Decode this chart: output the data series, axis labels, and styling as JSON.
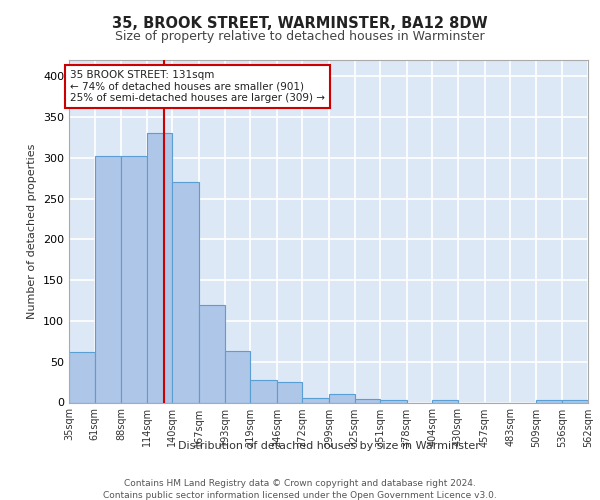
{
  "title1": "35, BROOK STREET, WARMINSTER, BA12 8DW",
  "title2": "Size of property relative to detached houses in Warminster",
  "xlabel": "Distribution of detached houses by size in Warminster",
  "ylabel": "Number of detached properties",
  "bar_values": [
    62,
    302,
    302,
    330,
    270,
    120,
    63,
    28,
    25,
    6,
    11,
    4,
    3,
    0,
    3,
    0,
    0,
    0,
    3,
    3
  ],
  "bin_edges": [
    35,
    61,
    88,
    114,
    140,
    167,
    193,
    219,
    246,
    272,
    299,
    325,
    351,
    378,
    404,
    430,
    457,
    483,
    509,
    536,
    562
  ],
  "bar_color": "#aec6e8",
  "bar_edge_color": "#5a9fd4",
  "vline_x": 131,
  "vline_color": "#cc0000",
  "annotation_text": "35 BROOK STREET: 131sqm\n← 74% of detached houses are smaller (901)\n25% of semi-detached houses are larger (309) →",
  "annotation_box_color": "#ffffff",
  "annotation_box_edge": "#cc0000",
  "footer": "Contains HM Land Registry data © Crown copyright and database right 2024.\nContains public sector information licensed under the Open Government Licence v3.0.",
  "tick_labels": [
    "35sqm",
    "61sqm",
    "88sqm",
    "114sqm",
    "140sqm",
    "167sqm",
    "193sqm",
    "219sqm",
    "246sqm",
    "272sqm",
    "299sqm",
    "325sqm",
    "351sqm",
    "378sqm",
    "404sqm",
    "430sqm",
    "457sqm",
    "483sqm",
    "509sqm",
    "536sqm",
    "562sqm"
  ],
  "ylim": [
    0,
    420
  ],
  "background_color": "#dce8f5",
  "grid_color": "#ffffff"
}
